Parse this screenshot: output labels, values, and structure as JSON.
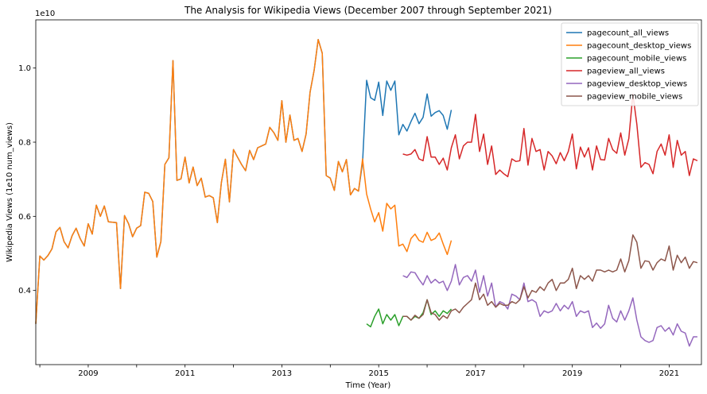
{
  "chart_data": {
    "type": "line",
    "title": "The Analysis for Wikipedia Views (December 2007 through September 2021)",
    "xlabel": "Time (Year)",
    "ylabel": "Wikipedia Views (1e10 num_views)",
    "offset_text": "1e10",
    "xlim": [
      "2007-12",
      "2021-09"
    ],
    "ylim": [
      0.2,
      1.13
    ],
    "x_ticks": [
      "2009",
      "2011",
      "2013",
      "2015",
      "2017",
      "2019",
      "2021"
    ],
    "y_ticks": [
      "0.4",
      "0.6",
      "0.8",
      "1.0"
    ],
    "grid": false,
    "legend_position": "top-right",
    "series": [
      {
        "name": "pagecount_all_views",
        "color": "#1f77b4",
        "start": "2007-12",
        "values": [
          0.31,
          0.493,
          0.482,
          0.494,
          0.512,
          0.558,
          0.57,
          0.532,
          0.515,
          0.548,
          0.568,
          0.54,
          0.52,
          0.58,
          0.552,
          0.63,
          0.6,
          0.628,
          0.585,
          0.584,
          0.583,
          0.405,
          0.602,
          0.58,
          0.545,
          0.568,
          0.575,
          0.665,
          0.662,
          0.64,
          0.49,
          0.532,
          0.74,
          0.758,
          1.02,
          0.697,
          0.701,
          0.76,
          0.69,
          0.733,
          0.683,
          0.703,
          0.652,
          0.656,
          0.65,
          0.583,
          0.69,
          0.754,
          0.639,
          0.78,
          0.76,
          0.74,
          0.723,
          0.778,
          0.753,
          0.785,
          0.79,
          0.795,
          0.84,
          0.826,
          0.805,
          0.912,
          0.8,
          0.873,
          0.805,
          0.81,
          0.775,
          0.822,
          0.935,
          0.994,
          1.077,
          1.04,
          0.71,
          0.703,
          0.67,
          0.748,
          0.72,
          0.753,
          0.658,
          0.675,
          0.668,
          0.745,
          0.967,
          0.92,
          0.913,
          0.962,
          0.872,
          0.965,
          0.94,
          0.965,
          0.82,
          0.848,
          0.83,
          0.856,
          0.878,
          0.85,
          0.867,
          0.93,
          0.87,
          0.88,
          0.885,
          0.872,
          0.835,
          0.887
        ]
      },
      {
        "name": "pagecount_desktop_views",
        "color": "#ff7f0e",
        "start": "2007-12",
        "values": [
          0.31,
          0.493,
          0.482,
          0.494,
          0.512,
          0.558,
          0.57,
          0.532,
          0.515,
          0.548,
          0.568,
          0.54,
          0.52,
          0.58,
          0.552,
          0.63,
          0.6,
          0.628,
          0.585,
          0.584,
          0.583,
          0.405,
          0.602,
          0.58,
          0.545,
          0.568,
          0.575,
          0.665,
          0.662,
          0.64,
          0.49,
          0.532,
          0.74,
          0.758,
          1.02,
          0.697,
          0.701,
          0.76,
          0.69,
          0.733,
          0.683,
          0.703,
          0.652,
          0.656,
          0.65,
          0.583,
          0.69,
          0.754,
          0.639,
          0.78,
          0.76,
          0.74,
          0.723,
          0.778,
          0.753,
          0.785,
          0.79,
          0.795,
          0.84,
          0.826,
          0.805,
          0.912,
          0.8,
          0.873,
          0.805,
          0.81,
          0.775,
          0.822,
          0.935,
          0.994,
          1.077,
          1.04,
          0.71,
          0.703,
          0.67,
          0.748,
          0.72,
          0.753,
          0.658,
          0.675,
          0.668,
          0.755,
          0.66,
          0.62,
          0.585,
          0.61,
          0.56,
          0.635,
          0.62,
          0.63,
          0.52,
          0.525,
          0.505,
          0.54,
          0.552,
          0.535,
          0.53,
          0.557,
          0.535,
          0.54,
          0.555,
          0.525,
          0.497,
          0.535
        ]
      },
      {
        "name": "pagecount_mobile_views",
        "color": "#2ca02c",
        "start": "2014-10",
        "values": [
          0.31,
          0.302,
          0.33,
          0.35,
          0.31,
          0.335,
          0.32,
          0.335,
          0.305,
          0.33,
          0.33,
          0.32,
          0.33,
          0.325,
          0.34,
          0.375,
          0.335,
          0.345,
          0.33,
          0.345,
          0.338,
          0.35
        ]
      },
      {
        "name": "pageview_all_views",
        "color": "#d62728",
        "start": "2015-07",
        "values": [
          0.768,
          0.765,
          0.768,
          0.78,
          0.755,
          0.75,
          0.815,
          0.76,
          0.76,
          0.74,
          0.757,
          0.725,
          0.785,
          0.82,
          0.755,
          0.79,
          0.8,
          0.8,
          0.875,
          0.775,
          0.822,
          0.74,
          0.79,
          0.713,
          0.725,
          0.715,
          0.707,
          0.755,
          0.748,
          0.75,
          0.837,
          0.738,
          0.81,
          0.775,
          0.78,
          0.725,
          0.775,
          0.763,
          0.742,
          0.772,
          0.75,
          0.775,
          0.822,
          0.728,
          0.787,
          0.76,
          0.785,
          0.725,
          0.79,
          0.753,
          0.752,
          0.81,
          0.78,
          0.77,
          0.825,
          0.765,
          0.81,
          0.93,
          0.848,
          0.732,
          0.745,
          0.74,
          0.715,
          0.775,
          0.795,
          0.765,
          0.82,
          0.732,
          0.805,
          0.765,
          0.775,
          0.71,
          0.755,
          0.75
        ]
      },
      {
        "name": "pageview_desktop_views",
        "color": "#9467bd",
        "start": "2015-07",
        "values": [
          0.44,
          0.435,
          0.45,
          0.448,
          0.43,
          0.415,
          0.44,
          0.42,
          0.43,
          0.42,
          0.425,
          0.4,
          0.425,
          0.47,
          0.415,
          0.435,
          0.44,
          0.425,
          0.455,
          0.395,
          0.44,
          0.385,
          0.42,
          0.355,
          0.37,
          0.365,
          0.35,
          0.39,
          0.385,
          0.375,
          0.42,
          0.37,
          0.375,
          0.368,
          0.33,
          0.345,
          0.34,
          0.345,
          0.365,
          0.345,
          0.36,
          0.35,
          0.37,
          0.33,
          0.345,
          0.34,
          0.345,
          0.3,
          0.312,
          0.298,
          0.31,
          0.36,
          0.325,
          0.315,
          0.345,
          0.32,
          0.345,
          0.38,
          0.32,
          0.275,
          0.265,
          0.26,
          0.265,
          0.3,
          0.305,
          0.29,
          0.3,
          0.28,
          0.31,
          0.29,
          0.285,
          0.25,
          0.275,
          0.275
        ]
      },
      {
        "name": "pageview_mobile_views",
        "color": "#8c564b",
        "start": "2015-07",
        "values": [
          0.33,
          0.33,
          0.32,
          0.333,
          0.325,
          0.335,
          0.375,
          0.34,
          0.335,
          0.32,
          0.332,
          0.325,
          0.345,
          0.35,
          0.34,
          0.355,
          0.365,
          0.375,
          0.42,
          0.375,
          0.39,
          0.36,
          0.37,
          0.355,
          0.365,
          0.36,
          0.36,
          0.37,
          0.365,
          0.375,
          0.41,
          0.38,
          0.4,
          0.395,
          0.41,
          0.4,
          0.42,
          0.43,
          0.4,
          0.42,
          0.42,
          0.43,
          0.46,
          0.405,
          0.44,
          0.43,
          0.44,
          0.425,
          0.455,
          0.455,
          0.45,
          0.455,
          0.45,
          0.455,
          0.485,
          0.45,
          0.48,
          0.55,
          0.53,
          0.46,
          0.48,
          0.478,
          0.455,
          0.475,
          0.485,
          0.48,
          0.52,
          0.455,
          0.495,
          0.475,
          0.49,
          0.46,
          0.478,
          0.475
        ]
      }
    ]
  }
}
